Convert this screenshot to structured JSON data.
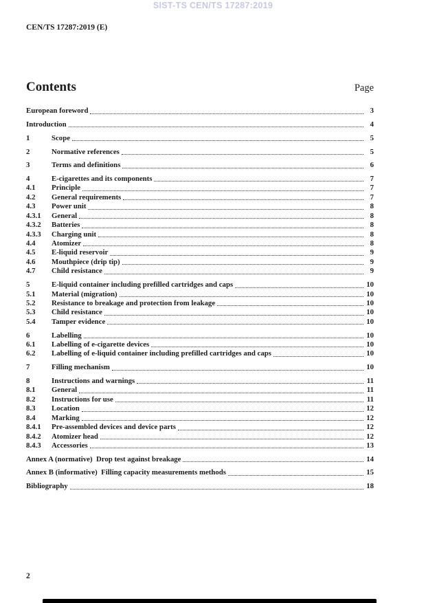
{
  "watermark": {
    "text": "SIST-TS CEN/TS 17287:2019",
    "color": "#c7c7ec"
  },
  "header": {
    "document_id": "CEN/TS 17287:2019 (E)"
  },
  "toc": {
    "heading": "Contents",
    "page_label": "Page",
    "rows": [
      {
        "num": "",
        "label": "European foreword",
        "page": "3",
        "group_start": true
      },
      {
        "num": "",
        "label": "Introduction",
        "page": "4",
        "group_start": true
      },
      {
        "num": "1",
        "label": "Scope",
        "page": "5",
        "group_start": true
      },
      {
        "num": "2",
        "label": "Normative references",
        "page": "5",
        "group_start": true
      },
      {
        "num": "3",
        "label": "Terms and definitions",
        "page": "6",
        "group_start": true
      },
      {
        "num": "4",
        "label": "E-cigarettes and its components",
        "page": "7",
        "group_start": true
      },
      {
        "num": "4.1",
        "label": "Principle",
        "page": "7",
        "group_start": false
      },
      {
        "num": "4.2",
        "label": "General requirements",
        "page": "7",
        "group_start": false
      },
      {
        "num": "4.3",
        "label": "Power unit",
        "page": "8",
        "group_start": false
      },
      {
        "num": "4.3.1",
        "label": "General",
        "page": "8",
        "group_start": false
      },
      {
        "num": "4.3.2",
        "label": "Batteries",
        "page": "8",
        "group_start": false
      },
      {
        "num": "4.3.3",
        "label": "Charging unit",
        "page": "8",
        "group_start": false
      },
      {
        "num": "4.4",
        "label": "Atomizer",
        "page": "8",
        "group_start": false
      },
      {
        "num": "4.5",
        "label": "E-liquid reservoir",
        "page": "9",
        "group_start": false
      },
      {
        "num": "4.6",
        "label": "Mouthpiece (drip tip)",
        "page": "9",
        "group_start": false
      },
      {
        "num": "4.7",
        "label": "Child resistance",
        "page": "9",
        "group_start": false
      },
      {
        "num": "5",
        "label": "E-liquid container including prefilled cartridges and caps",
        "page": "10",
        "group_start": true
      },
      {
        "num": "5.1",
        "label": "Material (migration)",
        "page": "10",
        "group_start": false
      },
      {
        "num": "5.2",
        "label": "Resistance to breakage and protection from leakage",
        "page": "10",
        "group_start": false
      },
      {
        "num": "5.3",
        "label": "Child resistance",
        "page": "10",
        "group_start": false
      },
      {
        "num": "5.4",
        "label": "Tamper evidence",
        "page": "10",
        "group_start": false
      },
      {
        "num": "6",
        "label": "Labelling",
        "page": "10",
        "group_start": true
      },
      {
        "num": "6.1",
        "label": "Labelling of e-cigarette devices",
        "page": "10",
        "group_start": false
      },
      {
        "num": "6.2",
        "label": "Labelling of e-liquid container including prefilled cartridges and caps",
        "page": "10",
        "group_start": false
      },
      {
        "num": "7",
        "label": "Filling mechanism",
        "page": "10",
        "group_start": true
      },
      {
        "num": "8",
        "label": "Instructions and warnings",
        "page": "11",
        "group_start": true
      },
      {
        "num": "8.1",
        "label": "General",
        "page": "11",
        "group_start": false
      },
      {
        "num": "8.2",
        "label": "Instructions for use",
        "page": "11",
        "group_start": false
      },
      {
        "num": "8.3",
        "label": "Location",
        "page": "12",
        "group_start": false
      },
      {
        "num": "8.4",
        "label": "Marking",
        "page": "12",
        "group_start": false
      },
      {
        "num": "8.4.1",
        "label": "Pre-assembled devices and device parts",
        "page": "12",
        "group_start": false
      },
      {
        "num": "8.4.2",
        "label": "Atomizer head",
        "page": "12",
        "group_start": false
      },
      {
        "num": "8.4.3",
        "label": "Accessories",
        "page": "13",
        "group_start": false
      },
      {
        "num": "",
        "label": "Annex A (normative)  Drop test against breakage",
        "page": "14",
        "group_start": true
      },
      {
        "num": "",
        "label": "Annex B (informative)  Filling capacity measurements methods",
        "page": "15",
        "group_start": true
      },
      {
        "num": "",
        "label": "Bibliography",
        "page": "18",
        "group_start": true
      }
    ]
  },
  "footer": {
    "page_number": "2"
  }
}
